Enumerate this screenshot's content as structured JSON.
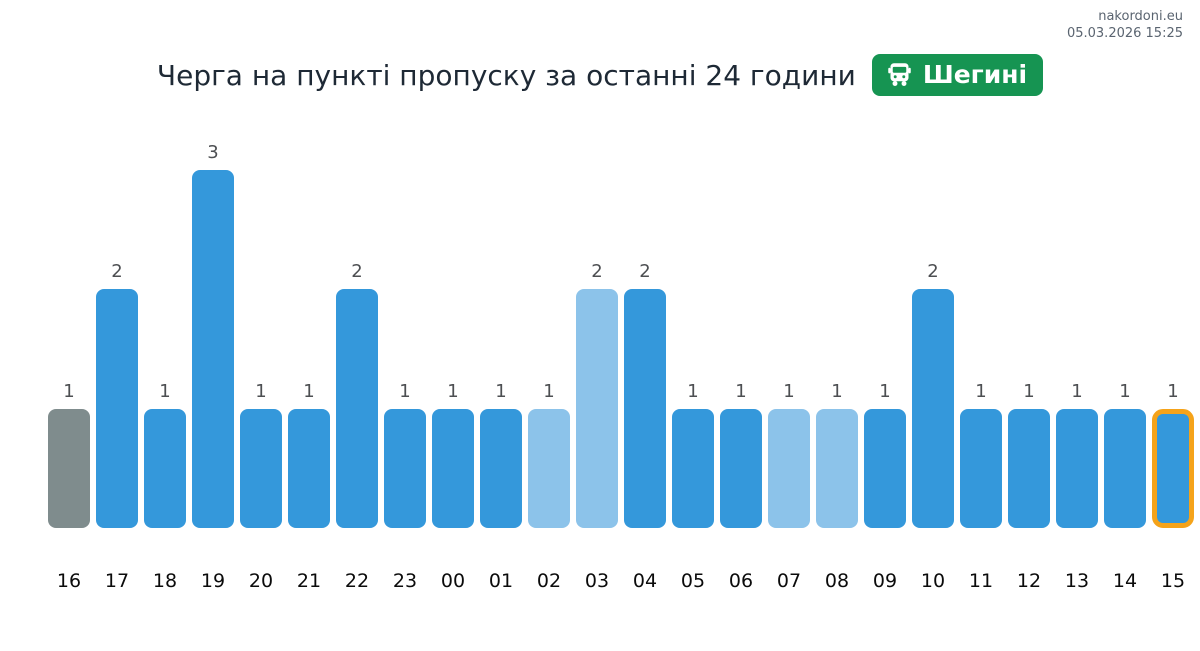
{
  "header": {
    "site": "nakordoni.eu",
    "datetime": "05.03.2026 15:25"
  },
  "title": {
    "text": "Черга на пункті пропуску за останні 24 години"
  },
  "badge": {
    "label": "Шегині",
    "icon": "bus-icon",
    "background": "#169452",
    "text_color": "#ffffff"
  },
  "chart_data": {
    "type": "bar",
    "title": "Черга на пункті пропуску за останні 24 години — Шегині",
    "xlabel": "",
    "ylabel": "",
    "ylim": [
      0,
      3
    ],
    "grid": false,
    "legend": false,
    "value_labels": true,
    "categories": [
      "16",
      "17",
      "18",
      "19",
      "20",
      "21",
      "22",
      "23",
      "00",
      "01",
      "02",
      "03",
      "04",
      "05",
      "06",
      "07",
      "08",
      "09",
      "10",
      "11",
      "12",
      "13",
      "14",
      "15"
    ],
    "values": [
      1,
      2,
      1,
      3,
      1,
      1,
      2,
      1,
      1,
      1,
      1,
      2,
      2,
      1,
      1,
      1,
      1,
      1,
      2,
      1,
      1,
      1,
      1,
      1
    ],
    "bar_styles": [
      "gray",
      "blue",
      "blue",
      "blue",
      "blue",
      "blue",
      "blue",
      "blue",
      "blue",
      "blue",
      "light",
      "light",
      "blue",
      "blue",
      "blue",
      "light",
      "light",
      "blue",
      "blue",
      "blue",
      "blue",
      "blue",
      "blue",
      "current"
    ],
    "colors": {
      "blue": "#3498db",
      "light": "#8cc3ea",
      "gray": "#7f8c8d",
      "current_fill": "#3498db",
      "current_border": "#f5a31a",
      "value_label": "#4d4f52",
      "axis_label": "#0b0b0b"
    }
  }
}
